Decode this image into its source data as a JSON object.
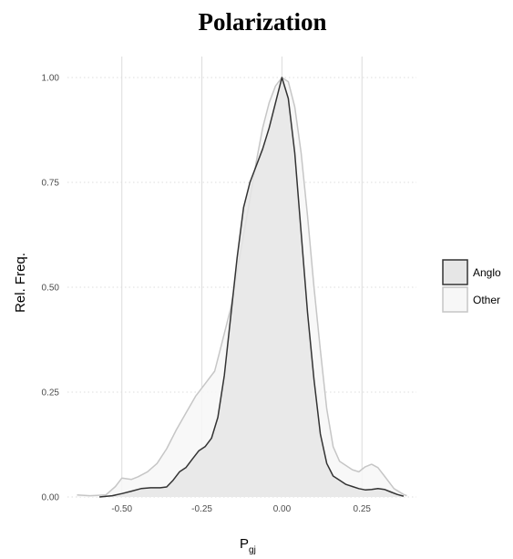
{
  "chart_data": {
    "type": "area",
    "title": "Polarization",
    "xlabel_main": "P",
    "xlabel_sub": "gj",
    "ylabel": "Rel. Freq.",
    "xlim": [
      -0.67,
      0.42
    ],
    "ylim": [
      0,
      1.05
    ],
    "x_ticks": [
      -0.5,
      -0.25,
      0.0,
      0.25
    ],
    "x_tick_labels": [
      "-0.50",
      "-0.25",
      "0.00",
      "0.25"
    ],
    "y_ticks": [
      0.0,
      0.25,
      0.5,
      0.75,
      1.0
    ],
    "y_tick_labels": [
      "0.00",
      "0.25",
      "0.50",
      "0.75",
      "1.00"
    ],
    "grid": true,
    "legend_position": "right",
    "series": [
      {
        "name": "Other",
        "fill": "#f7f7f7",
        "stroke": "#c6c6c6",
        "points": [
          [
            -0.64,
            0.005
          ],
          [
            -0.6,
            0.003
          ],
          [
            -0.55,
            0.005
          ],
          [
            -0.52,
            0.025
          ],
          [
            -0.5,
            0.045
          ],
          [
            -0.47,
            0.042
          ],
          [
            -0.45,
            0.048
          ],
          [
            -0.42,
            0.06
          ],
          [
            -0.39,
            0.08
          ],
          [
            -0.36,
            0.115
          ],
          [
            -0.33,
            0.16
          ],
          [
            -0.3,
            0.2
          ],
          [
            -0.27,
            0.24
          ],
          [
            -0.24,
            0.27
          ],
          [
            -0.21,
            0.3
          ],
          [
            -0.19,
            0.36
          ],
          [
            -0.16,
            0.45
          ],
          [
            -0.13,
            0.58
          ],
          [
            -0.1,
            0.71
          ],
          [
            -0.08,
            0.8
          ],
          [
            -0.06,
            0.88
          ],
          [
            -0.04,
            0.94
          ],
          [
            -0.02,
            0.98
          ],
          [
            0.0,
            1.0
          ],
          [
            0.02,
            0.99
          ],
          [
            0.04,
            0.93
          ],
          [
            0.06,
            0.82
          ],
          [
            0.08,
            0.67
          ],
          [
            0.1,
            0.5
          ],
          [
            0.12,
            0.35
          ],
          [
            0.14,
            0.21
          ],
          [
            0.16,
            0.12
          ],
          [
            0.18,
            0.085
          ],
          [
            0.2,
            0.075
          ],
          [
            0.22,
            0.065
          ],
          [
            0.24,
            0.06
          ],
          [
            0.26,
            0.072
          ],
          [
            0.28,
            0.078
          ],
          [
            0.3,
            0.07
          ],
          [
            0.32,
            0.05
          ],
          [
            0.35,
            0.02
          ],
          [
            0.38,
            0.006
          ],
          [
            0.39,
            0.003
          ]
        ]
      },
      {
        "name": "Anglo",
        "fill": "#e6e6e6",
        "stroke": "#333333",
        "points": [
          [
            -0.57,
            0.0
          ],
          [
            -0.53,
            0.003
          ],
          [
            -0.5,
            0.008
          ],
          [
            -0.47,
            0.014
          ],
          [
            -0.44,
            0.02
          ],
          [
            -0.41,
            0.022
          ],
          [
            -0.38,
            0.022
          ],
          [
            -0.36,
            0.024
          ],
          [
            -0.34,
            0.04
          ],
          [
            -0.32,
            0.06
          ],
          [
            -0.3,
            0.07
          ],
          [
            -0.28,
            0.09
          ],
          [
            -0.26,
            0.11
          ],
          [
            -0.24,
            0.12
          ],
          [
            -0.22,
            0.14
          ],
          [
            -0.2,
            0.19
          ],
          [
            -0.18,
            0.29
          ],
          [
            -0.16,
            0.43
          ],
          [
            -0.14,
            0.57
          ],
          [
            -0.12,
            0.69
          ],
          [
            -0.1,
            0.75
          ],
          [
            -0.08,
            0.79
          ],
          [
            -0.06,
            0.83
          ],
          [
            -0.04,
            0.88
          ],
          [
            -0.02,
            0.94
          ],
          [
            0.0,
            1.0
          ],
          [
            0.02,
            0.95
          ],
          [
            0.04,
            0.82
          ],
          [
            0.06,
            0.63
          ],
          [
            0.08,
            0.44
          ],
          [
            0.1,
            0.28
          ],
          [
            0.12,
            0.15
          ],
          [
            0.14,
            0.08
          ],
          [
            0.16,
            0.05
          ],
          [
            0.18,
            0.04
          ],
          [
            0.2,
            0.03
          ],
          [
            0.22,
            0.025
          ],
          [
            0.24,
            0.02
          ],
          [
            0.26,
            0.017
          ],
          [
            0.28,
            0.018
          ],
          [
            0.3,
            0.02
          ],
          [
            0.32,
            0.018
          ],
          [
            0.34,
            0.012
          ],
          [
            0.36,
            0.006
          ],
          [
            0.38,
            0.002
          ]
        ]
      }
    ],
    "legend": [
      {
        "label": "Anglo",
        "fill": "#e6e6e6",
        "stroke": "#333333"
      },
      {
        "label": "Other",
        "fill": "#f7f7f7",
        "stroke": "#c6c6c6"
      }
    ]
  }
}
